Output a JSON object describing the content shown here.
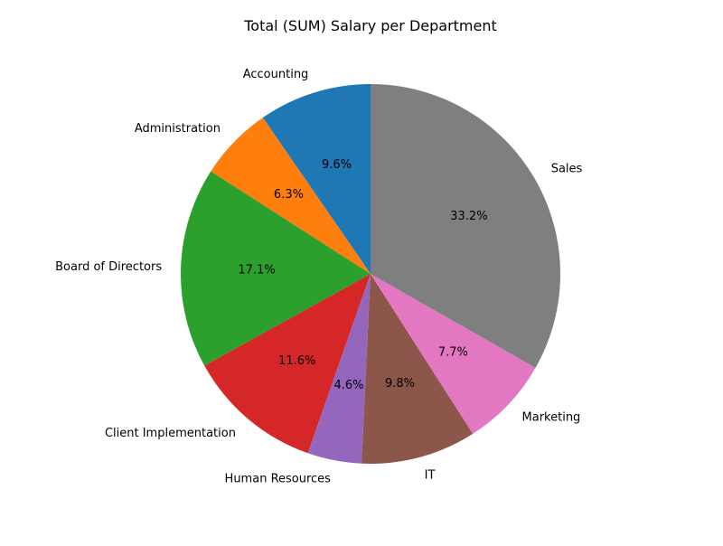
{
  "chart_data": {
    "type": "pie",
    "title": "Total (SUM) Salary per Department",
    "start_angle_deg": 90,
    "direction": "counterclockwise",
    "slices": [
      {
        "label": "Accounting",
        "value": 9.6,
        "pct_label": "9.6%",
        "color": "#1f77b4"
      },
      {
        "label": "Administration",
        "value": 6.3,
        "pct_label": "6.3%",
        "color": "#ff7f0e"
      },
      {
        "label": "Board of Directors",
        "value": 17.1,
        "pct_label": "17.1%",
        "color": "#2ca02c"
      },
      {
        "label": "Client Implementation",
        "value": 11.6,
        "pct_label": "11.6%",
        "color": "#d62728"
      },
      {
        "label": "Human Resources",
        "value": 4.6,
        "pct_label": "4.6%",
        "color": "#9467bd"
      },
      {
        "label": "IT",
        "value": 9.8,
        "pct_label": "9.8%",
        "color": "#8c564b"
      },
      {
        "label": "Marketing",
        "value": 7.7,
        "pct_label": "7.7%",
        "color": "#e377c2"
      },
      {
        "label": "Sales",
        "value": 33.2,
        "pct_label": "33.2%",
        "color": "#7f7f7f"
      }
    ]
  }
}
